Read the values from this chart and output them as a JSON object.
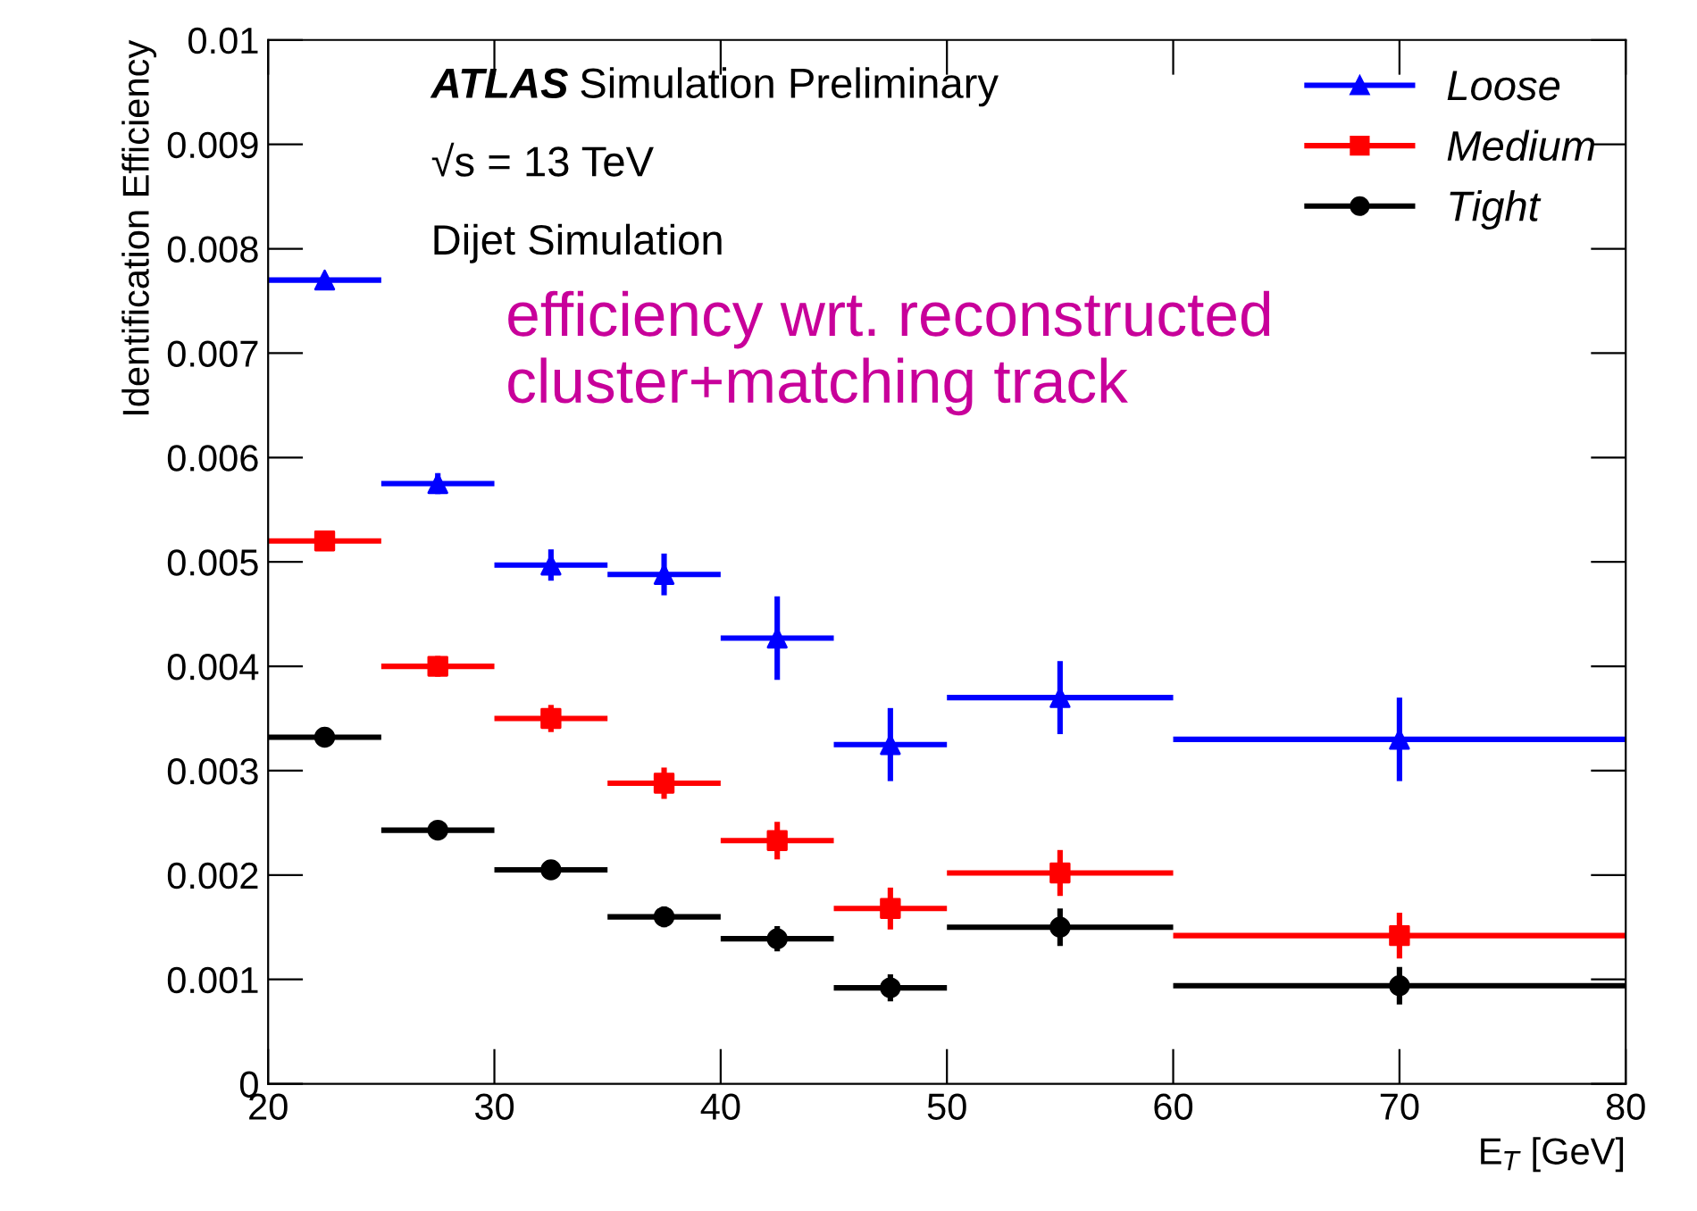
{
  "chart_data": {
    "type": "scatter",
    "ylabel": "Identification Efficiency",
    "xlabel": "E$_{T}$ [GeV]",
    "x": [
      22.5,
      27.5,
      32.5,
      37.5,
      42.5,
      47.5,
      55,
      70
    ],
    "series": [
      {
        "name": "Loose",
        "color": "#0000ff",
        "marker": "triangle",
        "values": [
          0.0077,
          0.00575,
          0.00497,
          0.00488,
          0.00427,
          0.00325,
          0.0037,
          0.0033
        ],
        "errors": [
          5e-05,
          0.0001,
          0.00015,
          0.0002,
          0.0004,
          0.00035,
          0.00035,
          0.0004
        ],
        "xerrors": [
          2.5,
          2.5,
          2.5,
          2.5,
          2.5,
          2.5,
          5,
          10
        ]
      },
      {
        "name": "Medium",
        "color": "#ff0000",
        "marker": "square",
        "values": [
          0.0052,
          0.004,
          0.0035,
          0.00288,
          0.00233,
          0.00168,
          0.00202,
          0.00142
        ],
        "errors": [
          5e-05,
          0.0001,
          0.00013,
          0.00015,
          0.00018,
          0.0002,
          0.00022,
          0.00022
        ],
        "xerrors": [
          2.5,
          2.5,
          2.5,
          2.5,
          2.5,
          2.5,
          5,
          10
        ]
      },
      {
        "name": "Tight",
        "color": "#000000",
        "marker": "circle",
        "values": [
          0.00332,
          0.00243,
          0.00205,
          0.0016,
          0.00139,
          0.00092,
          0.0015,
          0.00094
        ],
        "errors": [
          3e-05,
          5e-05,
          8e-05,
          0.0001,
          0.00012,
          0.00013,
          0.00018,
          0.00018
        ],
        "xerrors": [
          2.5,
          2.5,
          2.5,
          2.5,
          2.5,
          2.5,
          5,
          10
        ]
      }
    ],
    "xlim": [
      20,
      80
    ],
    "xticks": [
      20,
      30,
      40,
      50,
      60,
      70,
      80
    ],
    "ylim": [
      0,
      0.01
    ],
    "yticks": [
      0,
      0.001,
      0.002,
      0.003,
      0.004,
      0.005,
      0.006,
      0.007,
      0.008,
      0.009,
      0.01
    ],
    "grid": false,
    "legend": "top right",
    "annotations": [
      "ATLAS Simulation Preliminary",
      "√s = 13 TeV",
      "Dijet Simulation",
      "efficiency wrt. reconstructed cluster+matching track"
    ]
  }
}
